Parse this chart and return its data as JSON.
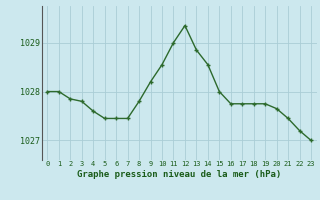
{
  "x": [
    0,
    1,
    2,
    3,
    4,
    5,
    6,
    7,
    8,
    9,
    10,
    11,
    12,
    13,
    14,
    15,
    16,
    17,
    18,
    19,
    20,
    21,
    22,
    23
  ],
  "y": [
    1028.0,
    1028.0,
    1027.85,
    1027.8,
    1027.6,
    1027.45,
    1027.45,
    1027.45,
    1027.8,
    1028.2,
    1028.55,
    1029.0,
    1029.35,
    1028.85,
    1028.55,
    1028.0,
    1027.75,
    1027.75,
    1027.75,
    1027.75,
    1027.65,
    1027.45,
    1027.2,
    1027.0
  ],
  "line_color": "#2d6a2d",
  "marker": "+",
  "marker_color": "#2d6a2d",
  "bg_color": "#cce8ee",
  "grid_color": "#aacdd6",
  "axis_label_color": "#1a5c1a",
  "tick_color": "#1a5c1a",
  "xlabel": "Graphe pression niveau de la mer (hPa)",
  "yticks": [
    1027,
    1028,
    1029
  ],
  "xlim": [
    -0.5,
    23.5
  ],
  "ylim": [
    1026.6,
    1029.75
  ],
  "linewidth": 1.0,
  "markersize": 3.5
}
